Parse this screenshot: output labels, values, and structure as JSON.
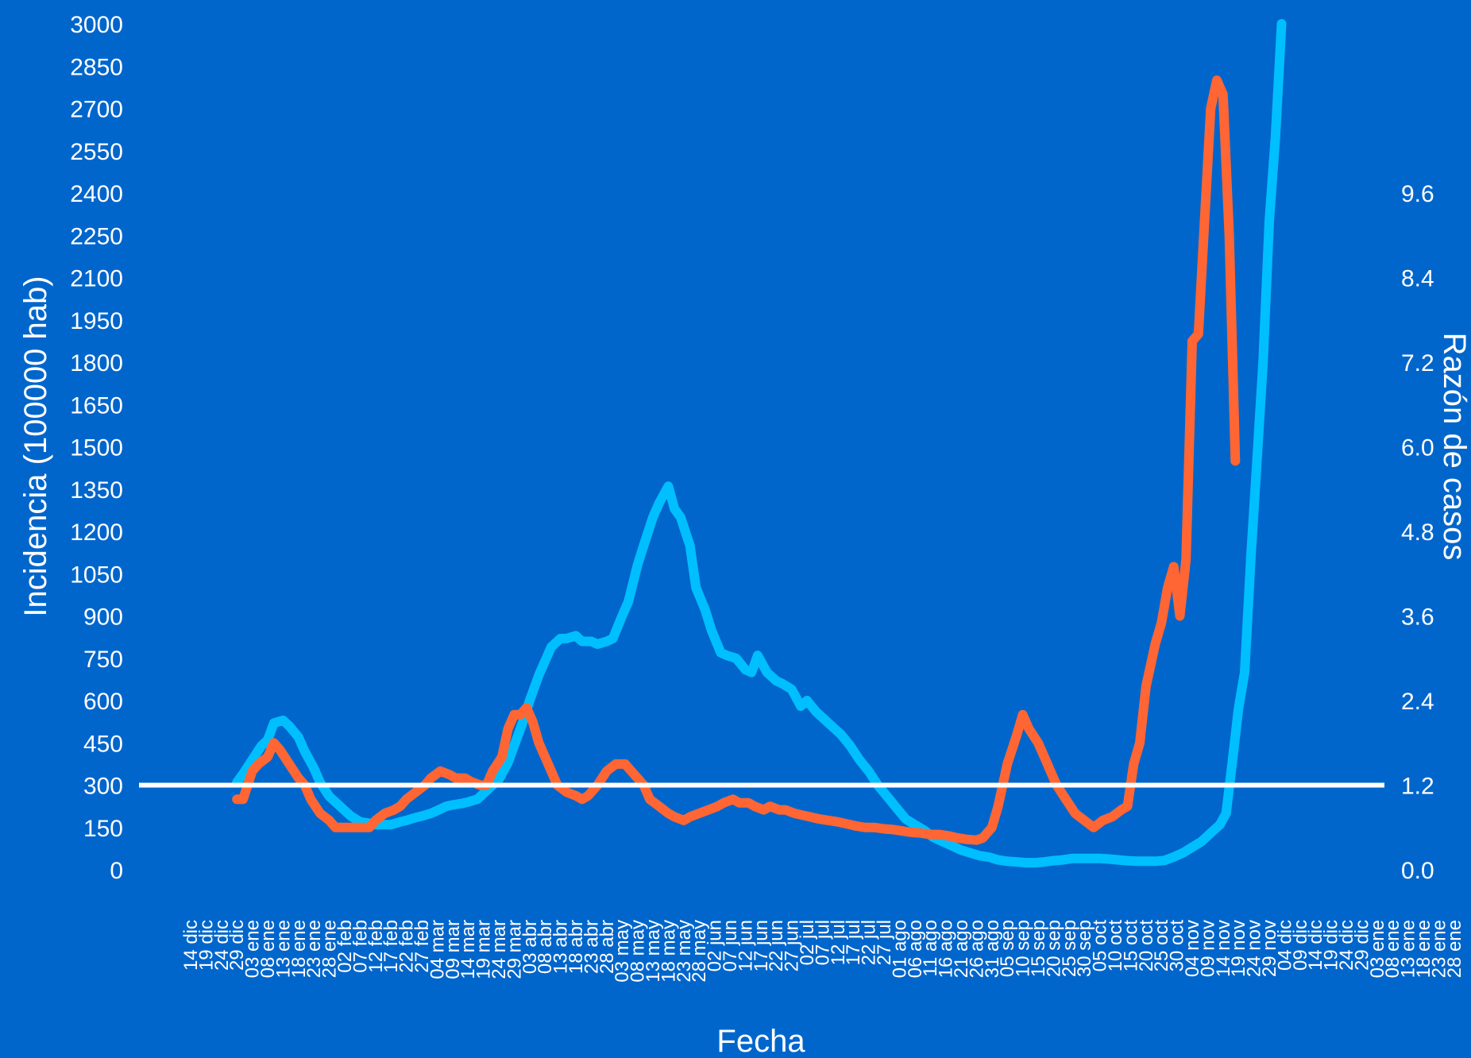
{
  "chart_data": {
    "type": "line",
    "xlabel": "Fecha",
    "ylabel_left": "Incidencia (100000 hab)",
    "ylabel_right": "Razón de casos",
    "ylim_left": [
      0,
      3000
    ],
    "yticks_left": [
      "0",
      "150",
      "300",
      "450",
      "600",
      "750",
      "900",
      "1050",
      "1200",
      "1350",
      "1500",
      "1650",
      "1800",
      "1950",
      "2100",
      "2250",
      "2400",
      "2550",
      "2700",
      "2850",
      "3000"
    ],
    "ylim_right": [
      0,
      12
    ],
    "yticks_right": [
      "0.0",
      "1.2",
      "2.4",
      "3.6",
      "4.8",
      "6.0",
      "7.2",
      "8.4",
      "9.6"
    ],
    "x_tick_labels": [
      "14 dic",
      "19 dic",
      "24 dic",
      "29 dic",
      "03 ene",
      "08 ene",
      "13 ene",
      "18 ene",
      "23 ene",
      "28 ene",
      "02 feb",
      "07 feb",
      "12 feb",
      "17 feb",
      "22 feb",
      "27 feb",
      "04 mar",
      "09 mar",
      "14 mar",
      "19 mar",
      "24 mar",
      "29 mar",
      "03 abr",
      "08 abr",
      "13 abr",
      "18 abr",
      "23 abr",
      "28 abr",
      "03 may",
      "08 may",
      "13 may",
      "18 may",
      "23 may",
      "28 may",
      "02 jun",
      "07 jun",
      "12 jun",
      "17 jun",
      "22 jun",
      "27 jun",
      "02 jul",
      "07 jul",
      "12 jul",
      "17 jul",
      "22 jul",
      "27 jul",
      "01 ago",
      "06 ago",
      "11 ago",
      "16 ago",
      "21 ago",
      "26 ago",
      "31 ago",
      "05 sep",
      "10 sep",
      "15 sep",
      "20 sep",
      "25 sep",
      "30 sep",
      "05 oct",
      "10 oct",
      "15 oct",
      "20 oct",
      "25 oct",
      "30 oct",
      "04 nov",
      "09 nov",
      "14 nov",
      "19 nov",
      "24 nov",
      "29 nov",
      "04 dic",
      "09 dic",
      "14 dic",
      "19 dic",
      "24 dic",
      "29 dic",
      "03 ene",
      "08 ene",
      "13 ene",
      "18 ene",
      "23 ene",
      "28 ene"
    ],
    "reference_line": {
      "axis": "right",
      "value": 1.2,
      "color": "#ffffff"
    },
    "series": [
      {
        "axis": "left",
        "color": "#00bfff",
        "points": [
          [
            "29 dic",
            310
          ],
          [
            "31 dic",
            340
          ],
          [
            "03 ene",
            390
          ],
          [
            "06 ene",
            440
          ],
          [
            "08 ene",
            460
          ],
          [
            "10 ene",
            520
          ],
          [
            "13 ene",
            530
          ],
          [
            "15 ene",
            510
          ],
          [
            "18 ene",
            470
          ],
          [
            "20 ene",
            420
          ],
          [
            "23 ene",
            360
          ],
          [
            "25 ene",
            310
          ],
          [
            "28 ene",
            260
          ],
          [
            "30 ene",
            240
          ],
          [
            "02 feb",
            210
          ],
          [
            "04 feb",
            190
          ],
          [
            "07 feb",
            170
          ],
          [
            "10 feb",
            165
          ],
          [
            "12 feb",
            160
          ],
          [
            "15 feb",
            160
          ],
          [
            "17 feb",
            160
          ],
          [
            "20 feb",
            170
          ],
          [
            "22 feb",
            175
          ],
          [
            "25 feb",
            185
          ],
          [
            "27 feb",
            190
          ],
          [
            "02 mar",
            200
          ],
          [
            "04 mar",
            210
          ],
          [
            "07 mar",
            225
          ],
          [
            "09 mar",
            230
          ],
          [
            "12 mar",
            235
          ],
          [
            "14 mar",
            240
          ],
          [
            "17 mar",
            250
          ],
          [
            "19 mar",
            270
          ],
          [
            "22 mar",
            300
          ],
          [
            "24 mar",
            320
          ],
          [
            "27 mar",
            380
          ],
          [
            "29 mar",
            440
          ],
          [
            "01 abr",
            530
          ],
          [
            "03 abr",
            600
          ],
          [
            "06 abr",
            690
          ],
          [
            "08 abr",
            740
          ],
          [
            "10 abr",
            790
          ],
          [
            "13 abr",
            820
          ],
          [
            "15 abr",
            820
          ],
          [
            "18 abr",
            830
          ],
          [
            "20 abr",
            810
          ],
          [
            "23 abr",
            810
          ],
          [
            "25 abr",
            800
          ],
          [
            "28 abr",
            810
          ],
          [
            "30 abr",
            820
          ],
          [
            "03 may",
            900
          ],
          [
            "05 may",
            950
          ],
          [
            "08 may",
            1080
          ],
          [
            "10 may",
            1150
          ],
          [
            "13 may",
            1250
          ],
          [
            "15 may",
            1300
          ],
          [
            "17 may",
            1340
          ],
          [
            "18 may",
            1360
          ],
          [
            "20 may",
            1280
          ],
          [
            "22 may",
            1250
          ],
          [
            "25 may",
            1150
          ],
          [
            "27 may",
            1000
          ],
          [
            "30 may",
            920
          ],
          [
            "01 jun",
            850
          ],
          [
            "04 jun",
            770
          ],
          [
            "06 jun",
            760
          ],
          [
            "09 jun",
            750
          ],
          [
            "12 jun",
            710
          ],
          [
            "14 jun",
            700
          ],
          [
            "16 jun",
            760
          ],
          [
            "19 jun",
            700
          ],
          [
            "22 jun",
            670
          ],
          [
            "24 jun",
            660
          ],
          [
            "27 jun",
            640
          ],
          [
            "30 jun",
            580
          ],
          [
            "02 jul",
            600
          ],
          [
            "05 jul",
            560
          ],
          [
            "08 jul",
            530
          ],
          [
            "11 jul",
            500
          ],
          [
            "13 jul",
            480
          ],
          [
            "16 jul",
            440
          ],
          [
            "19 jul",
            390
          ],
          [
            "22 jul",
            350
          ],
          [
            "25 jul",
            300
          ],
          [
            "28 jul",
            260
          ],
          [
            "31 jul",
            220
          ],
          [
            "03 ago",
            180
          ],
          [
            "06 ago",
            160
          ],
          [
            "09 ago",
            140
          ],
          [
            "12 ago",
            115
          ],
          [
            "15 ago",
            100
          ],
          [
            "18 ago",
            85
          ],
          [
            "21 ago",
            70
          ],
          [
            "24 ago",
            60
          ],
          [
            "27 ago",
            50
          ],
          [
            "30 ago",
            45
          ],
          [
            "02 sep",
            35
          ],
          [
            "05 sep",
            30
          ],
          [
            "08 sep",
            28
          ],
          [
            "11 sep",
            25
          ],
          [
            "14 sep",
            25
          ],
          [
            "17 sep",
            28
          ],
          [
            "20 sep",
            32
          ],
          [
            "23 sep",
            35
          ],
          [
            "26 sep",
            40
          ],
          [
            "29 sep",
            40
          ],
          [
            "02 oct",
            40
          ],
          [
            "05 oct",
            40
          ],
          [
            "08 oct",
            38
          ],
          [
            "11 oct",
            35
          ],
          [
            "14 oct",
            32
          ],
          [
            "17 oct",
            30
          ],
          [
            "20 oct",
            30
          ],
          [
            "23 oct",
            30
          ],
          [
            "26 oct",
            33
          ],
          [
            "29 oct",
            45
          ],
          [
            "01 nov",
            60
          ],
          [
            "04 nov",
            80
          ],
          [
            "07 nov",
            100
          ],
          [
            "10 nov",
            130
          ],
          [
            "13 nov",
            160
          ],
          [
            "15 nov",
            200
          ],
          [
            "17 nov",
            380
          ],
          [
            "19 nov",
            570
          ],
          [
            "21 nov",
            700
          ],
          [
            "23 nov",
            1100
          ],
          [
            "25 nov",
            1450
          ],
          [
            "27 nov",
            1800
          ],
          [
            "29 nov",
            2300
          ],
          [
            "01 dic",
            2600
          ],
          [
            "03 dic",
            3000
          ]
        ]
      },
      {
        "axis": "right",
        "color": "#ff6633",
        "points": [
          [
            "29 dic",
            1.0
          ],
          [
            "31 dic",
            1.0
          ],
          [
            "03 ene",
            1.4
          ],
          [
            "05 ene",
            1.5
          ],
          [
            "08 ene",
            1.6
          ],
          [
            "10 ene",
            1.8
          ],
          [
            "12 ene",
            1.7
          ],
          [
            "15 ene",
            1.5
          ],
          [
            "18 ene",
            1.3
          ],
          [
            "20 ene",
            1.2
          ],
          [
            "22 ene",
            1.0
          ],
          [
            "25 ene",
            0.8
          ],
          [
            "28 ene",
            0.7
          ],
          [
            "30 ene",
            0.6
          ],
          [
            "02 feb",
            0.6
          ],
          [
            "04 feb",
            0.6
          ],
          [
            "07 feb",
            0.6
          ],
          [
            "10 feb",
            0.6
          ],
          [
            "12 feb",
            0.7
          ],
          [
            "15 feb",
            0.8
          ],
          [
            "18 feb",
            0.85
          ],
          [
            "20 feb",
            0.9
          ],
          [
            "22 feb",
            1.0
          ],
          [
            "25 feb",
            1.1
          ],
          [
            "28 feb",
            1.2
          ],
          [
            "02 mar",
            1.3
          ],
          [
            "05 mar",
            1.4
          ],
          [
            "08 mar",
            1.35
          ],
          [
            "10 mar",
            1.3
          ],
          [
            "13 mar",
            1.3
          ],
          [
            "15 mar",
            1.25
          ],
          [
            "18 mar",
            1.2
          ],
          [
            "20 mar",
            1.2
          ],
          [
            "22 mar",
            1.4
          ],
          [
            "25 mar",
            1.6
          ],
          [
            "27 mar",
            2.0
          ],
          [
            "29 mar",
            2.2
          ],
          [
            "31 mar",
            2.2
          ],
          [
            "02 abr",
            2.3
          ],
          [
            "04 abr",
            2.1
          ],
          [
            "06 abr",
            1.8
          ],
          [
            "08 abr",
            1.6
          ],
          [
            "10 abr",
            1.4
          ],
          [
            "12 abr",
            1.2
          ],
          [
            "15 abr",
            1.1
          ],
          [
            "18 abr",
            1.05
          ],
          [
            "20 abr",
            1.0
          ],
          [
            "22 abr",
            1.05
          ],
          [
            "25 abr",
            1.2
          ],
          [
            "28 abr",
            1.4
          ],
          [
            "01 may",
            1.5
          ],
          [
            "04 may",
            1.5
          ],
          [
            "06 may",
            1.4
          ],
          [
            "08 may",
            1.3
          ],
          [
            "10 may",
            1.2
          ],
          [
            "12 may",
            1.0
          ],
          [
            "15 may",
            0.9
          ],
          [
            "18 may",
            0.8
          ],
          [
            "20 may",
            0.75
          ],
          [
            "23 may",
            0.7
          ],
          [
            "25 may",
            0.75
          ],
          [
            "28 may",
            0.8
          ],
          [
            "31 may",
            0.85
          ],
          [
            "03 jun",
            0.9
          ],
          [
            "05 jun",
            0.95
          ],
          [
            "08 jun",
            1.0
          ],
          [
            "10 jun",
            0.95
          ],
          [
            "13 jun",
            0.95
          ],
          [
            "15 jun",
            0.9
          ],
          [
            "18 jun",
            0.85
          ],
          [
            "20 jun",
            0.9
          ],
          [
            "23 jun",
            0.85
          ],
          [
            "25 jun",
            0.85
          ],
          [
            "28 jun",
            0.8
          ],
          [
            "30 jun",
            0.78
          ],
          [
            "03 jul",
            0.75
          ],
          [
            "06 jul",
            0.72
          ],
          [
            "09 jul",
            0.7
          ],
          [
            "12 jul",
            0.68
          ],
          [
            "15 jul",
            0.65
          ],
          [
            "18 jul",
            0.62
          ],
          [
            "21 jul",
            0.6
          ],
          [
            "24 jul",
            0.6
          ],
          [
            "27 jul",
            0.58
          ],
          [
            "30 jul",
            0.57
          ],
          [
            "02 ago",
            0.55
          ],
          [
            "05 ago",
            0.53
          ],
          [
            "08 ago",
            0.52
          ],
          [
            "11 ago",
            0.5
          ],
          [
            "14 ago",
            0.5
          ],
          [
            "17 ago",
            0.48
          ],
          [
            "20 ago",
            0.45
          ],
          [
            "23 ago",
            0.43
          ],
          [
            "26 ago",
            0.42
          ],
          [
            "28 ago",
            0.45
          ],
          [
            "31 ago",
            0.6
          ],
          [
            "02 sep",
            0.9
          ],
          [
            "05 sep",
            1.5
          ],
          [
            "08 sep",
            1.9
          ],
          [
            "10 sep",
            2.2
          ],
          [
            "12 sep",
            2.0
          ],
          [
            "15 sep",
            1.8
          ],
          [
            "17 sep",
            1.6
          ],
          [
            "19 sep",
            1.4
          ],
          [
            "21 sep",
            1.2
          ],
          [
            "24 sep",
            1.0
          ],
          [
            "27 sep",
            0.8
          ],
          [
            "30 sep",
            0.7
          ],
          [
            "03 oct",
            0.6
          ],
          [
            "06 oct",
            0.7
          ],
          [
            "09 oct",
            0.75
          ],
          [
            "12 oct",
            0.85
          ],
          [
            "14 oct",
            0.9
          ],
          [
            "16 oct",
            1.5
          ],
          [
            "18 oct",
            1.8
          ],
          [
            "20 oct",
            2.6
          ],
          [
            "23 oct",
            3.2
          ],
          [
            "25 oct",
            3.5
          ],
          [
            "27 oct",
            4.0
          ],
          [
            "29 oct",
            4.3
          ],
          [
            "31 oct",
            3.6
          ],
          [
            "02 nov",
            4.4
          ],
          [
            "04 nov",
            7.5
          ],
          [
            "06 nov",
            7.6
          ],
          [
            "08 nov",
            9.2
          ],
          [
            "10 nov",
            10.8
          ],
          [
            "12 nov",
            11.2
          ],
          [
            "14 nov",
            11.0
          ],
          [
            "16 nov",
            9.0
          ],
          [
            "18 nov",
            5.8
          ]
        ]
      }
    ]
  }
}
